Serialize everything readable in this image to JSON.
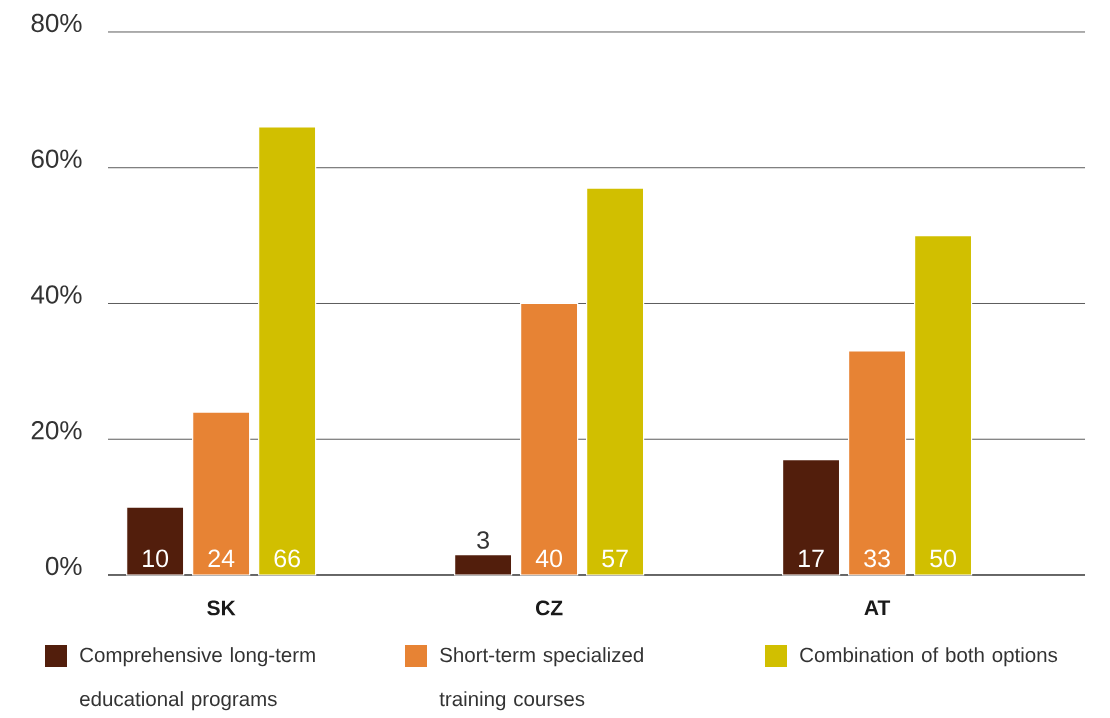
{
  "chart_data": {
    "type": "bar",
    "categories": [
      "SK",
      "CZ",
      "AT"
    ],
    "series": [
      {
        "name": "Comprehensive long-term educational programs",
        "color": "#521e0c",
        "values": [
          10,
          3,
          17
        ]
      },
      {
        "name": "Short-term specialized training courses",
        "color": "#e78334",
        "values": [
          24,
          40,
          33
        ]
      },
      {
        "name": "Combination of both options",
        "color": "#d1bf00",
        "values": [
          66,
          57,
          50
        ]
      }
    ],
    "ylim": [
      0,
      80
    ],
    "yticks": [
      {
        "value": 0,
        "label": "0%"
      },
      {
        "value": 20,
        "label": "20%"
      },
      {
        "value": 40,
        "label": "40%"
      },
      {
        "value": 60,
        "label": "60%"
      },
      {
        "value": 80,
        "label": "80%"
      }
    ],
    "grid": "y",
    "legend": "bottom",
    "data_labels": true
  }
}
